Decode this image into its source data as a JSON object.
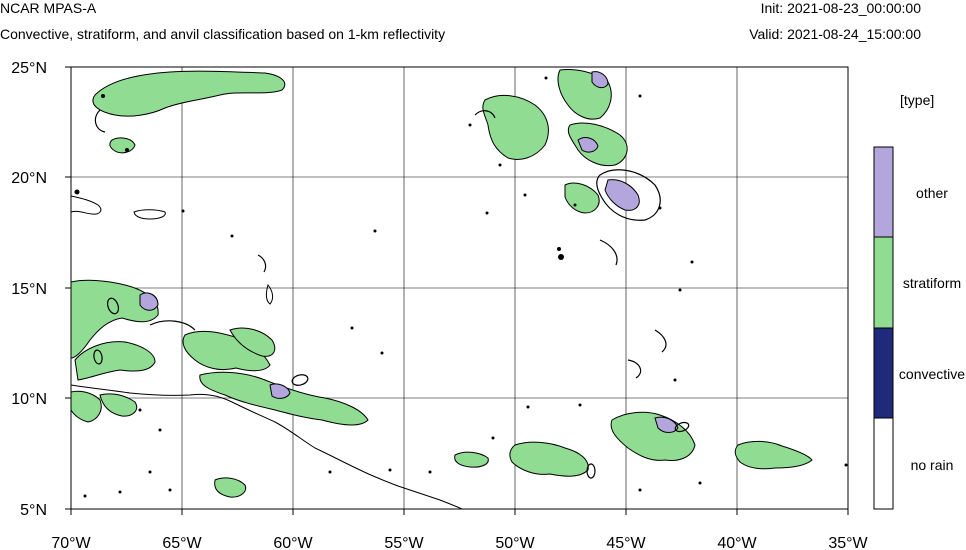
{
  "header": {
    "model_name": "NCAR MPAS-A",
    "description": "Convective, stratiform, and anvil classification based on 1-km reflectivity",
    "init_label": "Init:",
    "init_time": "2021-08-23_00:00:00",
    "valid_label": "Valid:",
    "valid_time": "2021-08-24_15:00:00"
  },
  "map": {
    "lon_ticks": [
      "70°W",
      "65°W",
      "60°W",
      "55°W",
      "50°W",
      "45°W",
      "40°W",
      "35°W"
    ],
    "lat_ticks": [
      "25°N",
      "20°N",
      "15°N",
      "10°N",
      "5°N"
    ],
    "grid": true
  },
  "legend": {
    "title": "[type]",
    "categories": [
      {
        "label": "other",
        "color": "#b3a6dd"
      },
      {
        "label": "stratiform",
        "color": "#8fdc92"
      },
      {
        "label": "convective",
        "color": "#1f2a7a"
      },
      {
        "label": "no rain",
        "color": "#ffffff"
      }
    ]
  },
  "colors": {
    "stratiform": "#8fdc92",
    "other": "#b3a6dd",
    "convective": "#1f2a7a",
    "contour": "#000000"
  }
}
